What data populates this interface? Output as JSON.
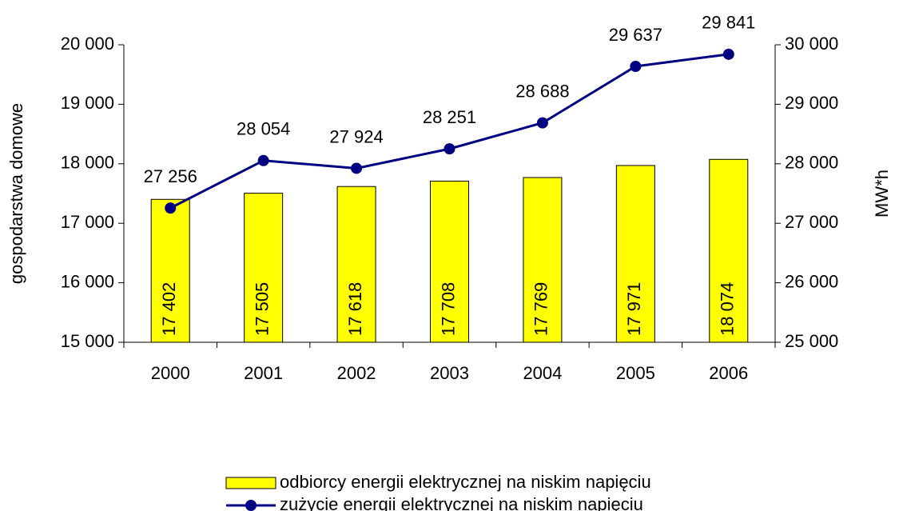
{
  "chart_data": {
    "type": "bar_line",
    "categories": [
      "2000",
      "2001",
      "2002",
      "2003",
      "2004",
      "2005",
      "2006"
    ],
    "series": [
      {
        "name": "odbiorcy energii elektrycznej na niskim napięciu",
        "type": "bar",
        "color": "#ffff00",
        "axis": "y",
        "values": [
          17402,
          17505,
          17618,
          17708,
          17769,
          17971,
          18074
        ],
        "value_labels": [
          "17 402",
          "17 505",
          "17 618",
          "17 708",
          "17 769",
          "17 971",
          "18 074"
        ]
      },
      {
        "name": "zużycie energii elektrycznej na niskim napięciu",
        "type": "line",
        "color": "#000080",
        "axis": "y2",
        "values": [
          27256,
          28054,
          27924,
          28251,
          28688,
          29637,
          29841
        ],
        "value_labels": [
          "27 256",
          "28 054",
          "27 924",
          "28 251",
          "28 688",
          "29 637",
          "29 841"
        ]
      }
    ],
    "ylabel": "gospodarstwa domowe",
    "y2label": "MW*h",
    "ylim": [
      15000,
      20000
    ],
    "yticks": [
      {
        "value": 15000,
        "label": "15 000"
      },
      {
        "value": 16000,
        "label": "16 000"
      },
      {
        "value": 17000,
        "label": "17 000"
      },
      {
        "value": 18000,
        "label": "18 000"
      },
      {
        "value": 19000,
        "label": "19 000"
      },
      {
        "value": 20000,
        "label": "20 000"
      }
    ],
    "y2lim": [
      25000,
      30000
    ],
    "y2ticks": [
      {
        "value": 25000,
        "label": "25 000"
      },
      {
        "value": 26000,
        "label": "26 000"
      },
      {
        "value": 27000,
        "label": "27 000"
      },
      {
        "value": 28000,
        "label": "28 000"
      },
      {
        "value": 29000,
        "label": "29 000"
      },
      {
        "value": 30000,
        "label": "30 000"
      }
    ],
    "legend": "bottom"
  }
}
